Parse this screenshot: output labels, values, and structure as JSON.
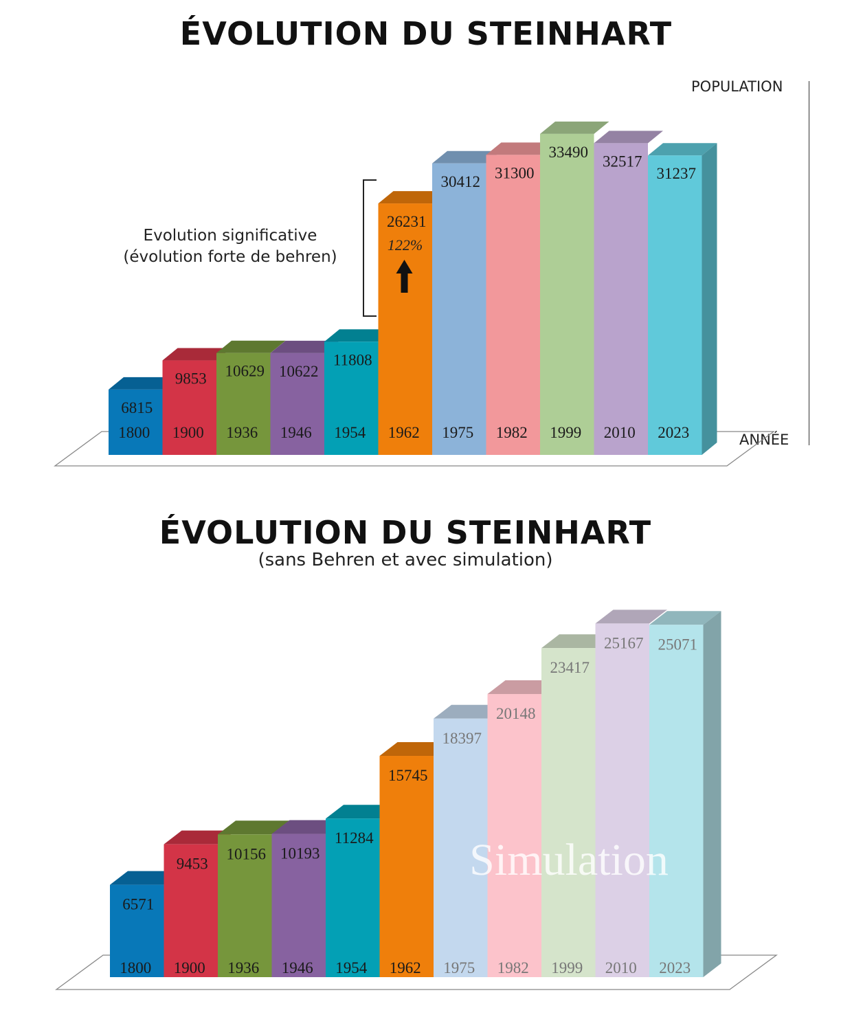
{
  "chart_data": [
    {
      "type": "bar",
      "title": "ÉVOLUTION DU STEINHART",
      "subtitle": "",
      "ylabel": "POPULATION",
      "xlabel": "ANNÉE",
      "categories": [
        "1800",
        "1900",
        "1936",
        "1946",
        "1954",
        "1962",
        "1975",
        "1982",
        "1999",
        "2010",
        "2023"
      ],
      "values": [
        6815,
        9853,
        10629,
        10622,
        11808,
        26231,
        30412,
        31300,
        33490,
        32517,
        31237
      ],
      "colors": [
        "#0878b8",
        "#d33447",
        "#76963c",
        "#8762a0",
        "#03a0b5",
        "#ef7f0b",
        "#8cb3d9",
        "#f2989b",
        "#aece96",
        "#b9a3cc",
        "#60c9da"
      ],
      "annotation": {
        "text_line1": "Evolution significative",
        "text_line2": "(évolution forte de behren)",
        "percent": "122%"
      }
    },
    {
      "type": "bar",
      "title": "ÉVOLUTION DU STEINHART",
      "subtitle": "(sans Behren et avec simulation)",
      "categories": [
        "1800",
        "1900",
        "1936",
        "1946",
        "1954",
        "1962",
        "1975",
        "1982",
        "1999",
        "2010",
        "2023"
      ],
      "values": [
        6571,
        9453,
        10156,
        10193,
        11284,
        15745,
        18397,
        20148,
        23417,
        25167,
        25071
      ],
      "colors": [
        "#0878b8",
        "#d33447",
        "#76963c",
        "#8762a0",
        "#03a0b5",
        "#ef7f0b",
        "#c3d8ee",
        "#fcc3cb",
        "#d5e4cb",
        "#dcd0e6",
        "#b4e4eb"
      ],
      "simulated_from": "1975",
      "watermark": "Simulation"
    }
  ]
}
